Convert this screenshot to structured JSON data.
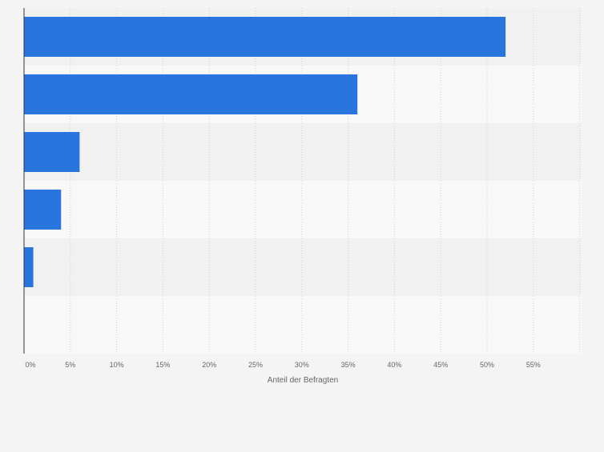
{
  "chart_data": {
    "type": "bar",
    "orientation": "horizontal",
    "categories": [
      "",
      "",
      "",
      "",
      "",
      ""
    ],
    "values": [
      52,
      36,
      6,
      4,
      1,
      null
    ],
    "unit": "%",
    "xlabel": "Anteil der Befragten",
    "ylabel": "",
    "title": "",
    "xlim": [
      0,
      60
    ],
    "xticks": [
      "0%",
      "5%",
      "10%",
      "15%",
      "20%",
      "25%",
      "30%",
      "35%",
      "40%",
      "45%",
      "50%",
      "55%"
    ],
    "grid": true,
    "legend": "none",
    "colors": {
      "bar": "#2876dd",
      "band_dark": "#f1f1f1",
      "band_light": "#f8f8f8",
      "gridline": "#d3d3d3",
      "axis": "#333333",
      "tick_text": "#666666"
    }
  }
}
